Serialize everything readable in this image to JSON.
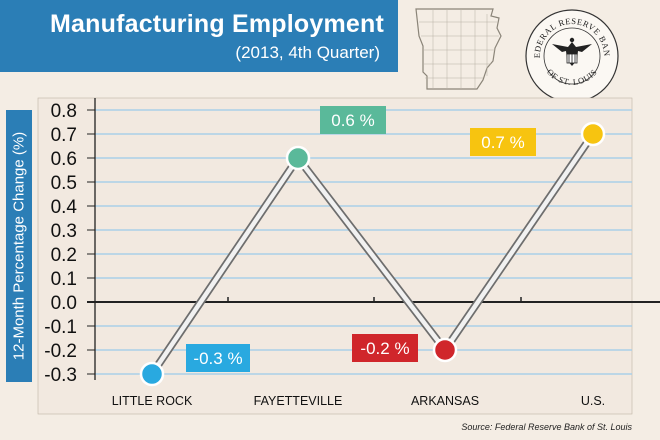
{
  "header": {
    "title": "Manufacturing Employment",
    "subtitle": "(2013, 4th Quarter)"
  },
  "logo": {
    "seal_top_text": "FEDERAL RESERVE BANK",
    "seal_bottom_text": "OF ST. LOUIS",
    "map_icon": "arkansas-state-outline-icon"
  },
  "colors": {
    "title_bg": "#2b7eb6",
    "little_rock": "#29a9e0",
    "fayetteville": "#5ab99a",
    "arkansas": "#d0262b",
    "us": "#f7c410"
  },
  "chart_data": {
    "type": "line",
    "ylabel": "12-Month Percentage Change (%)",
    "ylim": [
      -0.3,
      0.8
    ],
    "yticks": [
      "0.8",
      "0.7",
      "0.6",
      "0.5",
      "0.4",
      "0.3",
      "0.2",
      "0.1",
      "0.0",
      "-0.1",
      "-0.2",
      "-0.3"
    ],
    "categories": [
      "LITTLE ROCK",
      "FAYETTEVILLE",
      "ARKANSAS",
      "U.S."
    ],
    "values": [
      -0.3,
      0.6,
      -0.2,
      0.7
    ],
    "data_labels": [
      "-0.3 %",
      "0.6 %",
      "-0.2 %",
      "0.7 %"
    ],
    "point_colors": [
      "#29a9e0",
      "#5ab99a",
      "#d0262b",
      "#f7c410"
    ],
    "grid": true
  },
  "footer": {
    "source": "Source: Federal Reserve Bank of St. Louis"
  }
}
